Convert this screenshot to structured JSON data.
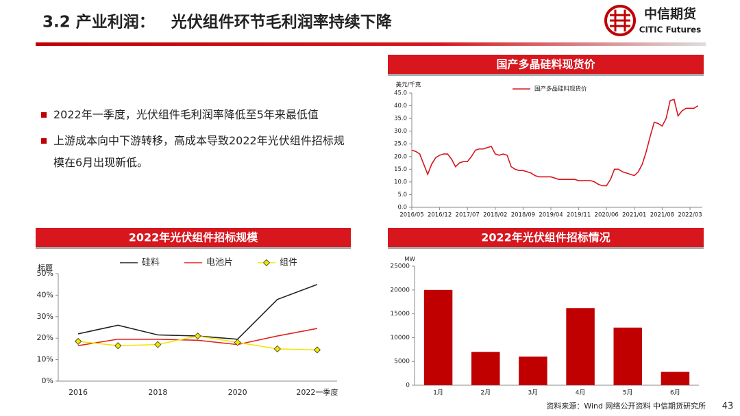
{
  "header": {
    "title": "3.2 产业利润：   光伏组件环节毛利润率持续下降",
    "logo_cn": "中信期货",
    "logo_en": "CITIC Futures"
  },
  "bullets": [
    "2022年一季度，光伏组件毛利润率降低至5年来最低值",
    "上游成本向中下游转移，高成本导致2022年光伏组件招标规模在6月出现新低。"
  ],
  "chart_data": [
    {
      "type": "line",
      "title": "国产多晶硅料现货价",
      "y_label": "美元/千克",
      "categories": [
        "2016/05",
        null,
        null,
        null,
        null,
        null,
        null,
        "2016/12",
        null,
        null,
        null,
        null,
        null,
        null,
        "2017/07",
        null,
        null,
        null,
        null,
        null,
        null,
        "2018/02",
        null,
        null,
        null,
        null,
        null,
        null,
        "2018/09",
        null,
        null,
        null,
        null,
        null,
        null,
        "2019/04",
        null,
        null,
        null,
        null,
        null,
        null,
        "2019/11",
        null,
        null,
        null,
        null,
        null,
        null,
        "2020/06",
        null,
        null,
        null,
        null,
        null,
        null,
        "2021/01",
        null,
        null,
        null,
        null,
        null,
        null,
        "2021/08",
        null,
        null,
        null,
        null,
        null,
        null,
        "2022/03",
        null,
        null
      ],
      "series": [
        {
          "name": "国产多晶硅料现货价",
          "color": "#d7161e",
          "values": [
            22.5,
            22,
            21,
            17,
            13,
            17,
            19.5,
            20.5,
            21,
            21,
            19,
            16,
            17.5,
            18,
            18,
            20,
            22.5,
            23,
            23,
            23.5,
            24,
            21,
            20.5,
            21,
            20.5,
            16,
            15,
            14.5,
            14.5,
            14,
            13.5,
            12.5,
            12,
            12,
            12,
            12,
            11.5,
            11,
            11,
            11,
            11,
            11,
            10.5,
            10.5,
            10.5,
            10.5,
            10,
            9,
            8.5,
            8.5,
            11,
            15,
            15,
            14,
            13.5,
            13,
            12.5,
            14,
            17,
            22,
            28,
            33.5,
            33,
            32,
            35,
            42,
            42.5,
            36,
            38,
            39,
            39,
            39,
            40
          ]
        }
      ],
      "ylim": [
        0,
        45
      ],
      "yticks": [
        {
          "value": 0,
          "label": "0.0"
        },
        {
          "value": 5,
          "label": "5.0"
        },
        {
          "value": 10,
          "label": "10.0"
        },
        {
          "value": 15,
          "label": "15.0"
        },
        {
          "value": 20,
          "label": "20.0"
        },
        {
          "value": 25,
          "label": "25.0"
        },
        {
          "value": 30,
          "label": "30.0"
        },
        {
          "value": 35,
          "label": "35.0"
        },
        {
          "value": 40,
          "label": "40.0"
        },
        {
          "value": 45,
          "label": "45.0"
        }
      ]
    },
    {
      "type": "line",
      "title": "2022年光伏组件招标规模",
      "y_label": "标题",
      "categories": [
        "2016",
        null,
        "2018",
        null,
        "2020",
        null,
        "2022一季度"
      ],
      "series": [
        {
          "name": "硅料",
          "color": "#222222",
          "values": [
            22,
            26,
            21.5,
            21,
            19.5,
            38,
            45
          ]
        },
        {
          "name": "电池片",
          "color": "#e0231c",
          "values": [
            16.5,
            19.5,
            19.5,
            19,
            17,
            21,
            24.5
          ]
        },
        {
          "name": "组件",
          "color": "#f2e600",
          "marker": "diamond",
          "values": [
            18.5,
            16.5,
            17,
            21,
            18,
            15,
            14.5
          ]
        }
      ],
      "ylim": [
        0,
        50
      ],
      "yticks": [
        {
          "value": 0,
          "label": "0%"
        },
        {
          "value": 10,
          "label": "10%"
        },
        {
          "value": 20,
          "label": "20%"
        },
        {
          "value": 30,
          "label": "30%"
        },
        {
          "value": 40,
          "label": "40%"
        },
        {
          "value": 50,
          "label": "50%"
        }
      ]
    },
    {
      "type": "bar",
      "title": "2022年光伏组件招标情况",
      "y_label": "MW",
      "categories": [
        "1月",
        "2月",
        "3月",
        "4月",
        "5月",
        "6月"
      ],
      "values": [
        20000,
        7000,
        6000,
        16200,
        12100,
        2800
      ],
      "color": "#c00000",
      "ylim": [
        0,
        25000
      ],
      "yticks": [
        0,
        5000,
        10000,
        15000,
        20000,
        25000
      ]
    }
  ],
  "footer": {
    "source": "资料来源：Wind 网络公开资料 中信期货研究所",
    "page": "43"
  }
}
